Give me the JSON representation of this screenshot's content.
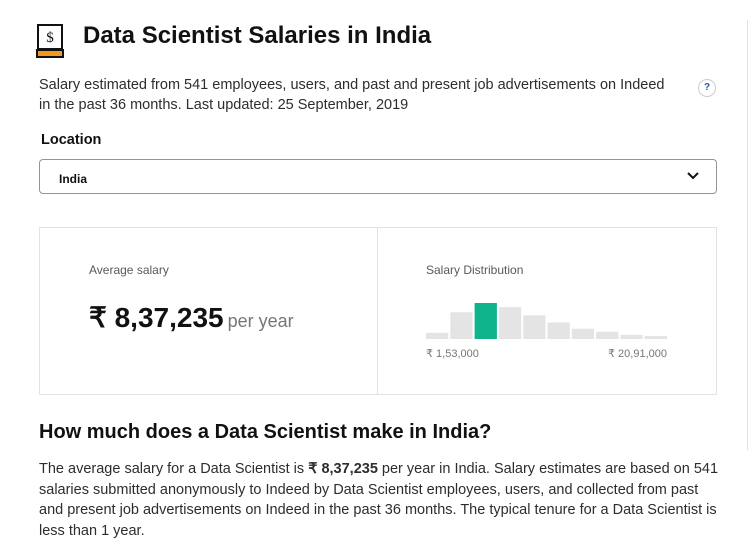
{
  "header": {
    "title": "Data Scientist Salaries in India"
  },
  "description": "Salary estimated from 541 employees, users, and past and present job advertisements on Indeed in the past 36 months. Last updated: 25 September, 2019",
  "help": "?",
  "location": {
    "label": "Location",
    "value": "India"
  },
  "average": {
    "label": "Average salary",
    "amount": "₹ 8,37,235",
    "unit": "per year"
  },
  "distribution": {
    "label": "Salary Distribution",
    "values": [
      6,
      26,
      35,
      31,
      23,
      16,
      10,
      7,
      4,
      3
    ],
    "highlight": 2,
    "min_label": "₹ 1,53,000",
    "max_label": "₹ 20,91,000"
  },
  "section": {
    "heading": "How much does a Data Scientist make in India?",
    "text_before": "The average salary for a Data Scientist is ",
    "text_bold": "₹ 8,37,235",
    "text_after": " per year in India. Salary estimates are based on 541 salaries submitted anonymously to Indeed by Data Scientist employees, users, and collected from past and present job advertisements on Indeed in the past 36 months. The typical tenure for a Data Scientist is less than 1 year."
  }
}
